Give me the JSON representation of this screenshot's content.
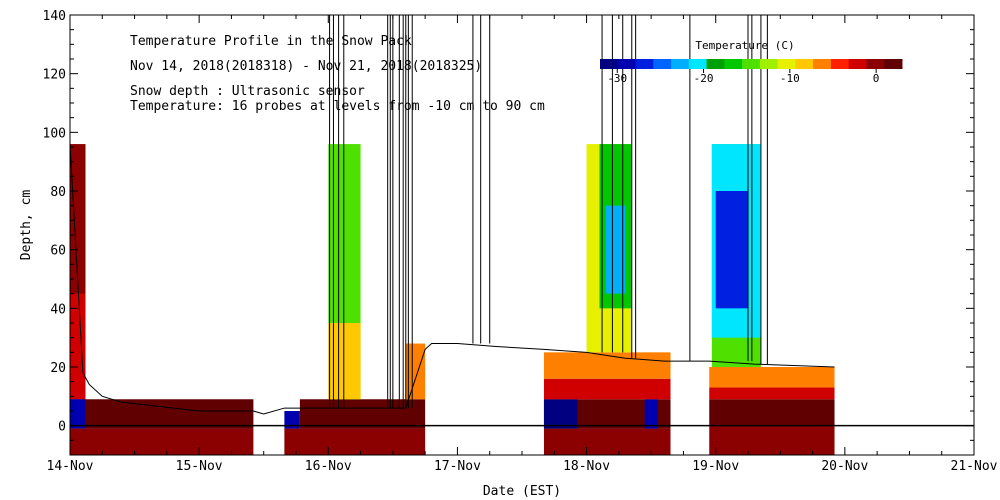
{
  "chart_data": {
    "type": "heatmap",
    "title": "Temperature Profile in the Snow Pack",
    "subtitle": "Nov 14, 2018(2018318) - Nov 21, 2018(2018325)",
    "notes": [
      "Snow depth : Ultrasonic sensor",
      "Temperature: 16 probes at levels from -10 cm to 90 cm"
    ],
    "xlabel": "Date (EST)",
    "ylabel": "Depth, cm",
    "x_ticks": [
      "14-Nov",
      "15-Nov",
      "16-Nov",
      "17-Nov",
      "18-Nov",
      "19-Nov",
      "20-Nov",
      "21-Nov"
    ],
    "xlim": [
      0,
      7
    ],
    "ylim": [
      -10,
      140
    ],
    "y_ticks": [
      0,
      20,
      40,
      60,
      80,
      100,
      120,
      140
    ],
    "grid": false,
    "legend": {
      "title": "Temperature (C)",
      "placement": "top-right",
      "ticks": [
        -30,
        -20,
        -10,
        0
      ],
      "range": [
        -32,
        3
      ],
      "colors": [
        "#000080",
        "#0000b0",
        "#0020e0",
        "#0066ff",
        "#00b0ff",
        "#00e6ff",
        "#00a000",
        "#00c800",
        "#50e000",
        "#a0f000",
        "#e6f000",
        "#ffc800",
        "#ff8000",
        "#ff2000",
        "#d00000",
        "#8b0000",
        "#600000"
      ]
    },
    "temperature_blocks": [
      {
        "x0": 0.0,
        "x1": 0.12,
        "y0": 9,
        "y1": 96,
        "t": -1
      },
      {
        "x0": 0.0,
        "x1": 0.12,
        "y0": 20,
        "y1": 45,
        "t": -2
      },
      {
        "x0": 0.0,
        "x1": 0.12,
        "y0": 9,
        "y1": 20,
        "t": -3
      },
      {
        "x0": 0.0,
        "x1": 0.12,
        "y0": -1,
        "y1": 9,
        "t": -28
      },
      {
        "x0": 0.0,
        "x1": 1.42,
        "y0": -10,
        "y1": -1,
        "t": 0
      },
      {
        "x0": 0.12,
        "x1": 1.42,
        "y0": -1,
        "y1": 9,
        "t": 1
      },
      {
        "x0": 1.66,
        "x1": 2.75,
        "y0": -10,
        "y1": -1,
        "t": 0
      },
      {
        "x0": 1.66,
        "x1": 1.78,
        "y0": -1,
        "y1": 5,
        "t": -28
      },
      {
        "x0": 1.78,
        "x1": 2.75,
        "y0": -1,
        "y1": 9,
        "t": 1
      },
      {
        "x0": 2.0,
        "x1": 2.25,
        "y0": 9,
        "y1": 96,
        "t": -14
      },
      {
        "x0": 2.0,
        "x1": 2.25,
        "y0": 9,
        "y1": 35,
        "t": -8
      },
      {
        "x0": 2.6,
        "x1": 2.75,
        "y0": 9,
        "y1": 28,
        "t": -6
      },
      {
        "x0": 3.67,
        "x1": 4.65,
        "y0": -10,
        "y1": -1,
        "t": -1
      },
      {
        "x0": 3.67,
        "x1": 4.65,
        "y0": -1,
        "y1": 9,
        "t": 1
      },
      {
        "x0": 3.67,
        "x1": 3.93,
        "y0": -1,
        "y1": 9,
        "t": -30
      },
      {
        "x0": 4.45,
        "x1": 4.55,
        "y0": -1,
        "y1": 9,
        "t": -28
      },
      {
        "x0": 3.67,
        "x1": 4.65,
        "y0": 9,
        "y1": 16,
        "t": -2
      },
      {
        "x0": 3.67,
        "x1": 4.65,
        "y0": 16,
        "y1": 25,
        "t": -6
      },
      {
        "x0": 4.0,
        "x1": 4.35,
        "y0": 25,
        "y1": 96,
        "t": -10
      },
      {
        "x0": 4.1,
        "x1": 4.35,
        "y0": 40,
        "y1": 96,
        "t": -16
      },
      {
        "x0": 4.15,
        "x1": 4.3,
        "y0": 45,
        "y1": 75,
        "t": -22
      },
      {
        "x0": 4.95,
        "x1": 5.92,
        "y0": -10,
        "y1": 0,
        "t": 0
      },
      {
        "x0": 4.95,
        "x1": 5.92,
        "y0": 0,
        "y1": 9,
        "t": 1
      },
      {
        "x0": 4.95,
        "x1": 5.92,
        "y0": 9,
        "y1": 13,
        "t": -2
      },
      {
        "x0": 4.95,
        "x1": 5.92,
        "y0": 13,
        "y1": 20,
        "t": -7
      },
      {
        "x0": 4.97,
        "x1": 5.35,
        "y0": 20,
        "y1": 96,
        "t": -14
      },
      {
        "x0": 4.97,
        "x1": 5.35,
        "y0": 30,
        "y1": 96,
        "t": -20
      },
      {
        "x0": 5.0,
        "x1": 5.25,
        "y0": 40,
        "y1": 80,
        "t": -26
      }
    ],
    "snow_depth": {
      "x": [
        0.0,
        0.1,
        0.15,
        0.25,
        0.4,
        0.6,
        0.8,
        1.0,
        1.2,
        1.42,
        1.5,
        1.66,
        1.8,
        2.0,
        2.3,
        2.6,
        2.75,
        2.8,
        3.0,
        3.3,
        3.67,
        4.0,
        4.3,
        4.6,
        4.65,
        4.95,
        5.3,
        5.92
      ],
      "y": [
        96,
        18,
        14,
        10,
        8,
        7,
        6,
        5,
        5,
        5,
        4,
        6,
        6,
        6,
        6,
        6,
        26,
        28,
        28,
        27,
        26,
        25,
        23,
        22,
        22,
        22,
        21,
        20
      ]
    },
    "spikes_x": [
      2.01,
      2.04,
      2.08,
      2.12,
      2.46,
      2.48,
      2.5,
      2.55,
      2.58,
      2.6,
      2.62,
      2.65,
      3.12,
      3.18,
      3.25,
      4.12,
      4.2,
      4.28,
      4.35,
      4.38,
      4.8,
      5.25,
      5.28,
      5.35,
      5.4
    ]
  }
}
